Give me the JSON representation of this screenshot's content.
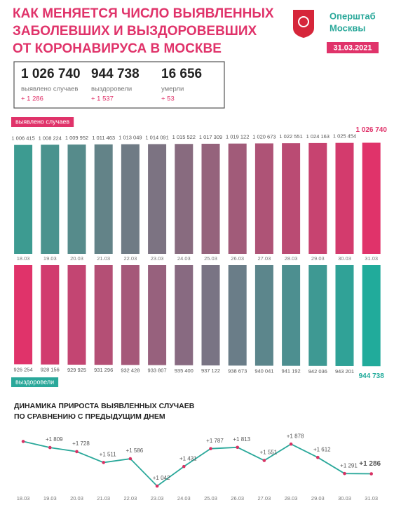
{
  "header": {
    "title": [
      "КАК МЕНЯЕТСЯ ЧИСЛО ВЫЯВЛЕННЫХ",
      "ЗАБОЛЕВШИХ И ВЫЗДОРОВЕВШИХ",
      "ОТ КОРОНАВИРУСА В МОСКВЕ"
    ],
    "org": [
      "Оперштаб",
      "Москвы"
    ],
    "date": "31.03.2021"
  },
  "stats": [
    {
      "value": "1 026 740",
      "label": "выявлено случаев",
      "delta": "+ 1 286"
    },
    {
      "value": "944 738",
      "label": "выздоровели",
      "delta": "+ 1 537"
    },
    {
      "value": "16 656",
      "label": "умерли",
      "delta": "+ 53"
    }
  ],
  "chart_data": [
    {
      "type": "bar",
      "direction": "up",
      "label": "выявлено случаев",
      "label_color": "#e0336a",
      "categories": [
        "18.03",
        "19.03",
        "20.03",
        "21.03",
        "22.03",
        "23.03",
        "24.03",
        "25.03",
        "26.03",
        "27.03",
        "28.03",
        "29.03",
        "30.03",
        "31.03"
      ],
      "values": [
        1006415,
        1008224,
        1009952,
        1011463,
        1013049,
        1014091,
        1015522,
        1017309,
        1019122,
        1020673,
        1022551,
        1024163,
        1025454,
        1026740
      ],
      "value_labels": [
        "1 006 415",
        "1 008 224",
        "1 009 952",
        "1 011 463",
        "1 013 049",
        "1 014 091",
        "1 015 522",
        "1 017 309",
        "1 019 122",
        "1 020 673",
        "1 022 551",
        "1 024 163",
        "1 025 454",
        "1 026 740"
      ],
      "ylim": [
        0,
        1030000
      ],
      "colors": [
        "#3d9b91",
        "#e0336a"
      ]
    },
    {
      "type": "bar",
      "direction": "down",
      "label": "выздоровели",
      "label_color": "#2aa89a",
      "values": [
        926254,
        928156,
        929925,
        931296,
        932428,
        933807,
        935400,
        937122,
        938673,
        940041,
        941192,
        942036,
        943201,
        944738
      ],
      "value_labels": [
        "926 254",
        "928 156",
        "929 925",
        "931 296",
        "932 428",
        "933 807",
        "935 400",
        "937 122",
        "938 673",
        "940 041",
        "941 192",
        "942 036",
        "943 201",
        "944 738"
      ],
      "ylim": [
        0,
        950000
      ],
      "colors": [
        "#e0336a",
        "#21ab9b"
      ]
    },
    {
      "type": "line",
      "title": [
        "ДИНАМИКА ПРИРОСТА ВЫЯВЛЕННЫХ СЛУЧАЕВ",
        "ПО СРАВНЕНИЮ С ПРЕДЫДУЩИМ ДНЕМ"
      ],
      "categories": [
        "18.03",
        "19.03",
        "20.03",
        "21.03",
        "22.03",
        "23.03",
        "24.03",
        "25.03",
        "26.03",
        "27.03",
        "28.03",
        "29.03",
        "30.03",
        "31.03"
      ],
      "values": [
        1930,
        1809,
        1728,
        1511,
        1586,
        1042,
        1431,
        1787,
        1813,
        1551,
        1878,
        1612,
        1291,
        1286
      ],
      "value_labels": [
        null,
        "+1 809",
        "+1 728",
        "+1 511",
        "+1 586",
        "+1 042",
        "+1 431",
        "+1 787",
        "+1 813",
        "+1 551",
        "+1 878",
        "+1 612",
        "+1 291",
        "+1 286"
      ],
      "ylim": [
        1000,
        1950
      ],
      "color": "#2aa89a",
      "marker_color": "#d83264"
    }
  ]
}
